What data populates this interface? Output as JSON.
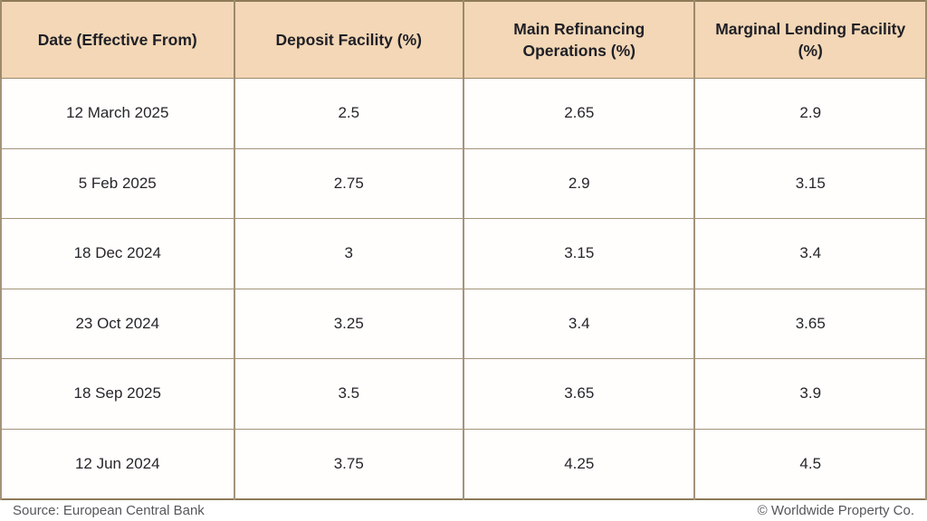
{
  "table": {
    "columns": [
      "Date (Effective From)",
      "Deposit Facility (%)",
      "Main Refinancing Operations (%)",
      "Marginal Lending Facility (%)"
    ],
    "rows": [
      [
        "12 March 2025",
        "2.5",
        "2.65",
        "2.9"
      ],
      [
        "5 Feb 2025",
        "2.75",
        "2.9",
        "3.15"
      ],
      [
        "18 Dec 2024",
        "3",
        "3.15",
        "3.4"
      ],
      [
        "23 Oct 2024",
        "3.25",
        "3.4",
        "3.65"
      ],
      [
        "18 Sep 2025",
        "3.5",
        "3.65",
        "3.9"
      ],
      [
        "12 Jun 2024",
        "3.75",
        "4.25",
        "4.5"
      ]
    ]
  },
  "footer": {
    "source": "Source: European Central Bank",
    "copyright": "© Worldwide Property Co."
  },
  "colors": {
    "header_bg": "#f3d7b6",
    "border": "#9c8a6b",
    "outer_border": "#8d7a58",
    "header_text": "#1f1f26",
    "cell_text": "#26262b",
    "footer_text": "#56565b"
  },
  "chart_data": {
    "type": "table",
    "title": "",
    "columns": [
      "Date (Effective From)",
      "Deposit Facility (%)",
      "Main Refinancing Operations (%)",
      "Marginal Lending Facility (%)"
    ],
    "rows": [
      {
        "date": "12 March 2025",
        "deposit_facility": 2.5,
        "main_refinancing_operations": 2.65,
        "marginal_lending_facility": 2.9
      },
      {
        "date": "5 Feb 2025",
        "deposit_facility": 2.75,
        "main_refinancing_operations": 2.9,
        "marginal_lending_facility": 3.15
      },
      {
        "date": "18 Dec 2024",
        "deposit_facility": 3,
        "main_refinancing_operations": 3.15,
        "marginal_lending_facility": 3.4
      },
      {
        "date": "23 Oct 2024",
        "deposit_facility": 3.25,
        "main_refinancing_operations": 3.4,
        "marginal_lending_facility": 3.65
      },
      {
        "date": "18 Sep 2025",
        "deposit_facility": 3.5,
        "main_refinancing_operations": 3.65,
        "marginal_lending_facility": 3.9
      },
      {
        "date": "12 Jun 2024",
        "deposit_facility": 3.75,
        "main_refinancing_operations": 4.25,
        "marginal_lending_facility": 4.5
      }
    ],
    "source": "European Central Bank",
    "attribution": "© Worldwide Property Co."
  }
}
